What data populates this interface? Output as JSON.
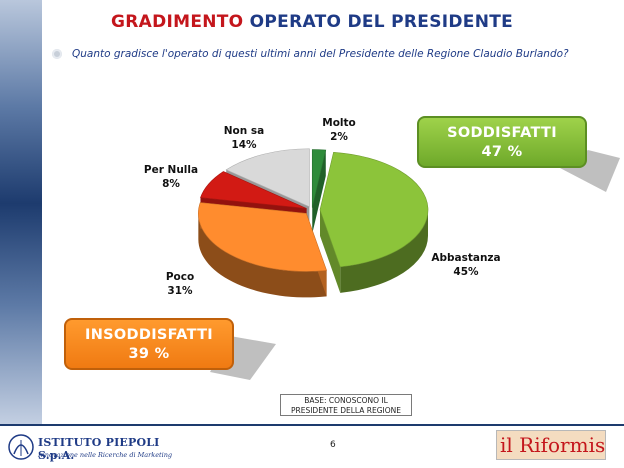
{
  "header": {
    "title_part1": "GRADIMENTO",
    "title_part2": "OPERATO DEL PRESIDENTE",
    "question": "Quanto gradisce l'operato di questi ultimi anni del Presidente delle Regione Claudio Burlando?"
  },
  "chart_data": {
    "type": "pie",
    "slices": [
      {
        "name": "Molto",
        "value": 2,
        "label": "2%",
        "color": "#2e8b3a"
      },
      {
        "name": "Abbastanza",
        "value": 45,
        "label": "45%",
        "color": "#8cc43a"
      },
      {
        "name": "Poco",
        "value": 31,
        "label": "31%",
        "color": "#ff8c2e"
      },
      {
        "name": "Per Nulla",
        "value": 8,
        "label": "8%",
        "color": "#d21a14"
      },
      {
        "name": "Non sa",
        "value": 14,
        "label": "14%",
        "color": "#d9d9d9"
      }
    ],
    "groups": [
      {
        "name": "SODDISFATTI",
        "value": "47 %",
        "color": "#8cc43a"
      },
      {
        "name": "INSODDISFATTI",
        "value": "39 %",
        "color": "#f8871f"
      }
    ]
  },
  "footer": {
    "base_note_line1": "BASE: CONOSCONO IL",
    "base_note_line2": "PRESIDENTE DELLA REGIONE",
    "page_number": "6",
    "left_logo_name": "ISTITUTO PIEPOLI S.p.A.",
    "left_logo_tagline": "Innovazione nelle Ricerche di Marketing",
    "right_logo": "il Riformista"
  }
}
